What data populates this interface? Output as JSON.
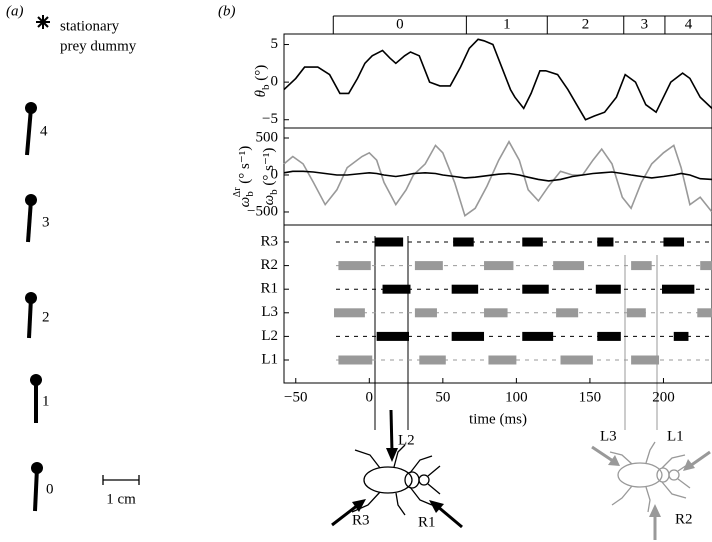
{
  "panel_a": {
    "label": "(a)",
    "legend_line1": "stationary",
    "legend_line2": "prey dummy",
    "positions": [
      "4",
      "3",
      "2",
      "1",
      "0"
    ],
    "scale": "1 cm"
  },
  "panel_b": {
    "label": "(b)",
    "insect_left_legs": [
      "L2",
      "R3",
      "R1"
    ],
    "insect_right_legs": [
      "L3",
      "L1",
      "R2"
    ]
  },
  "chart_data": [
    {
      "type": "line",
      "ylabel": {
        "symbol": "θ",
        "sub": "b",
        "unit": " (°)"
      },
      "xlim": [
        -58,
        233
      ],
      "ylim": [
        -6.1,
        6.4
      ],
      "yticks": [
        5,
        0,
        {
          "value": -5,
          "label": "−5"
        }
      ],
      "phases": {
        "labels": [
          "0",
          "1",
          "2",
          "3",
          "4"
        ],
        "bounds": [
          -24.5,
          66,
          121,
          173,
          201,
          233
        ]
      },
      "x": [
        -58,
        -50,
        -44,
        -35,
        -27,
        -20,
        -14,
        -8,
        -3,
        2,
        9,
        14,
        18,
        24,
        28,
        34,
        41,
        48,
        55,
        62,
        68,
        74,
        78,
        84,
        90,
        96,
        99,
        105,
        110,
        116,
        120,
        128,
        135,
        141,
        147,
        153,
        160,
        168,
        174,
        181,
        188,
        195,
        205,
        213,
        218,
        225,
        233
      ],
      "series": [
        {
          "color": "#000000",
          "values": [
            -1,
            0.5,
            2,
            2,
            1,
            -1.5,
            -1.5,
            0.5,
            2.5,
            3.5,
            4.2,
            3.2,
            2.5,
            3.5,
            4,
            3.5,
            0,
            -0.5,
            -0.5,
            2,
            4.5,
            5.7,
            5.5,
            5,
            2,
            -1,
            -2,
            -3.5,
            -1.5,
            1.5,
            1.5,
            1,
            -1,
            -3,
            -5,
            -4.5,
            -4,
            -2,
            1,
            0,
            -3,
            -4,
            0,
            1.2,
            0.5,
            -2,
            -3.5
          ]
        }
      ]
    },
    {
      "type": "line",
      "ylabel": {
        "symbol": "ω",
        "sub": "b",
        "unit": " (° s⁻¹)"
      },
      "ylabel2": {
        "symbol": "ω",
        "sub": "b",
        "sup": "Δr",
        "unit": " (° s⁻¹)"
      },
      "xlim": [
        -58,
        233
      ],
      "ylim": [
        -676,
        635
      ],
      "yticks": [
        500,
        0,
        {
          "value": -500,
          "label": "−500"
        }
      ],
      "x": [
        -58,
        -52,
        -45,
        -38,
        -30,
        -22,
        -15,
        -5,
        0,
        5,
        10,
        18,
        25,
        30,
        38,
        45,
        50,
        58,
        65,
        72,
        80,
        88,
        95,
        102,
        108,
        115,
        122,
        130,
        138,
        145,
        152,
        158,
        165,
        172,
        178,
        185,
        192,
        200,
        207,
        212,
        218,
        225,
        233
      ],
      "series": [
        {
          "color": "#999999",
          "values": [
            150,
            250,
            150,
            -100,
            -400,
            -200,
            100,
            250,
            300,
            200,
            -100,
            -400,
            -200,
            0,
            150,
            400,
            300,
            -100,
            -550,
            -450,
            -150,
            200,
            450,
            200,
            -200,
            -350,
            -150,
            50,
            0,
            0,
            200,
            350,
            150,
            -300,
            -450,
            -100,
            150,
            300,
            400,
            100,
            -400,
            -300,
            -500
          ]
        },
        {
          "color": "#000000",
          "values": [
            30,
            50,
            50,
            40,
            20,
            0,
            0,
            20,
            30,
            20,
            0,
            -20,
            0,
            20,
            30,
            20,
            0,
            -20,
            -40,
            -30,
            -10,
            10,
            20,
            0,
            -30,
            -60,
            -80,
            -60,
            -20,
            0,
            20,
            30,
            40,
            20,
            0,
            -20,
            -40,
            -20,
            0,
            20,
            0,
            -50,
            -60
          ]
        }
      ]
    },
    {
      "type": "gait",
      "xlabel": "time (ms)",
      "xlim": [
        -58,
        233
      ],
      "xticks": [
        {
          "value": -50,
          "label": "−50"
        },
        0,
        50,
        100,
        150,
        200
      ],
      "series": [
        {
          "name": "R3",
          "color": "#000000",
          "intervals": [
            [
              4,
              23
            ],
            [
              57,
              71
            ],
            [
              104,
              118
            ],
            [
              155,
              166
            ],
            [
              200,
              214
            ]
          ]
        },
        {
          "name": "R2",
          "color": "#999999",
          "intervals": [
            [
              -21,
              1
            ],
            [
              31,
              50
            ],
            [
              78,
              98
            ],
            [
              125,
              146
            ],
            [
              178,
              192
            ],
            [
              225,
              233
            ]
          ]
        },
        {
          "name": "R1",
          "color": "#000000",
          "intervals": [
            [
              9,
              28
            ],
            [
              56,
              74
            ],
            [
              104,
              122
            ],
            [
              154,
              171
            ],
            [
              199,
              221
            ]
          ]
        },
        {
          "name": "L3",
          "color": "#999999",
          "intervals": [
            [
              -24,
              -3
            ],
            [
              31,
              46
            ],
            [
              78,
              94
            ],
            [
              127,
              142
            ],
            [
              175,
              188
            ],
            [
              223,
              233
            ]
          ]
        },
        {
          "name": "L2",
          "color": "#000000",
          "intervals": [
            [
              5,
              27
            ],
            [
              56,
              78
            ],
            [
              104,
              125
            ],
            [
              155,
              171
            ],
            [
              207,
              217
            ]
          ]
        },
        {
          "name": "L1",
          "color": "#999999",
          "intervals": [
            [
              -21,
              2
            ],
            [
              34,
              52
            ],
            [
              81,
              100
            ],
            [
              130,
              152
            ],
            [
              178,
              197
            ]
          ]
        }
      ]
    }
  ]
}
